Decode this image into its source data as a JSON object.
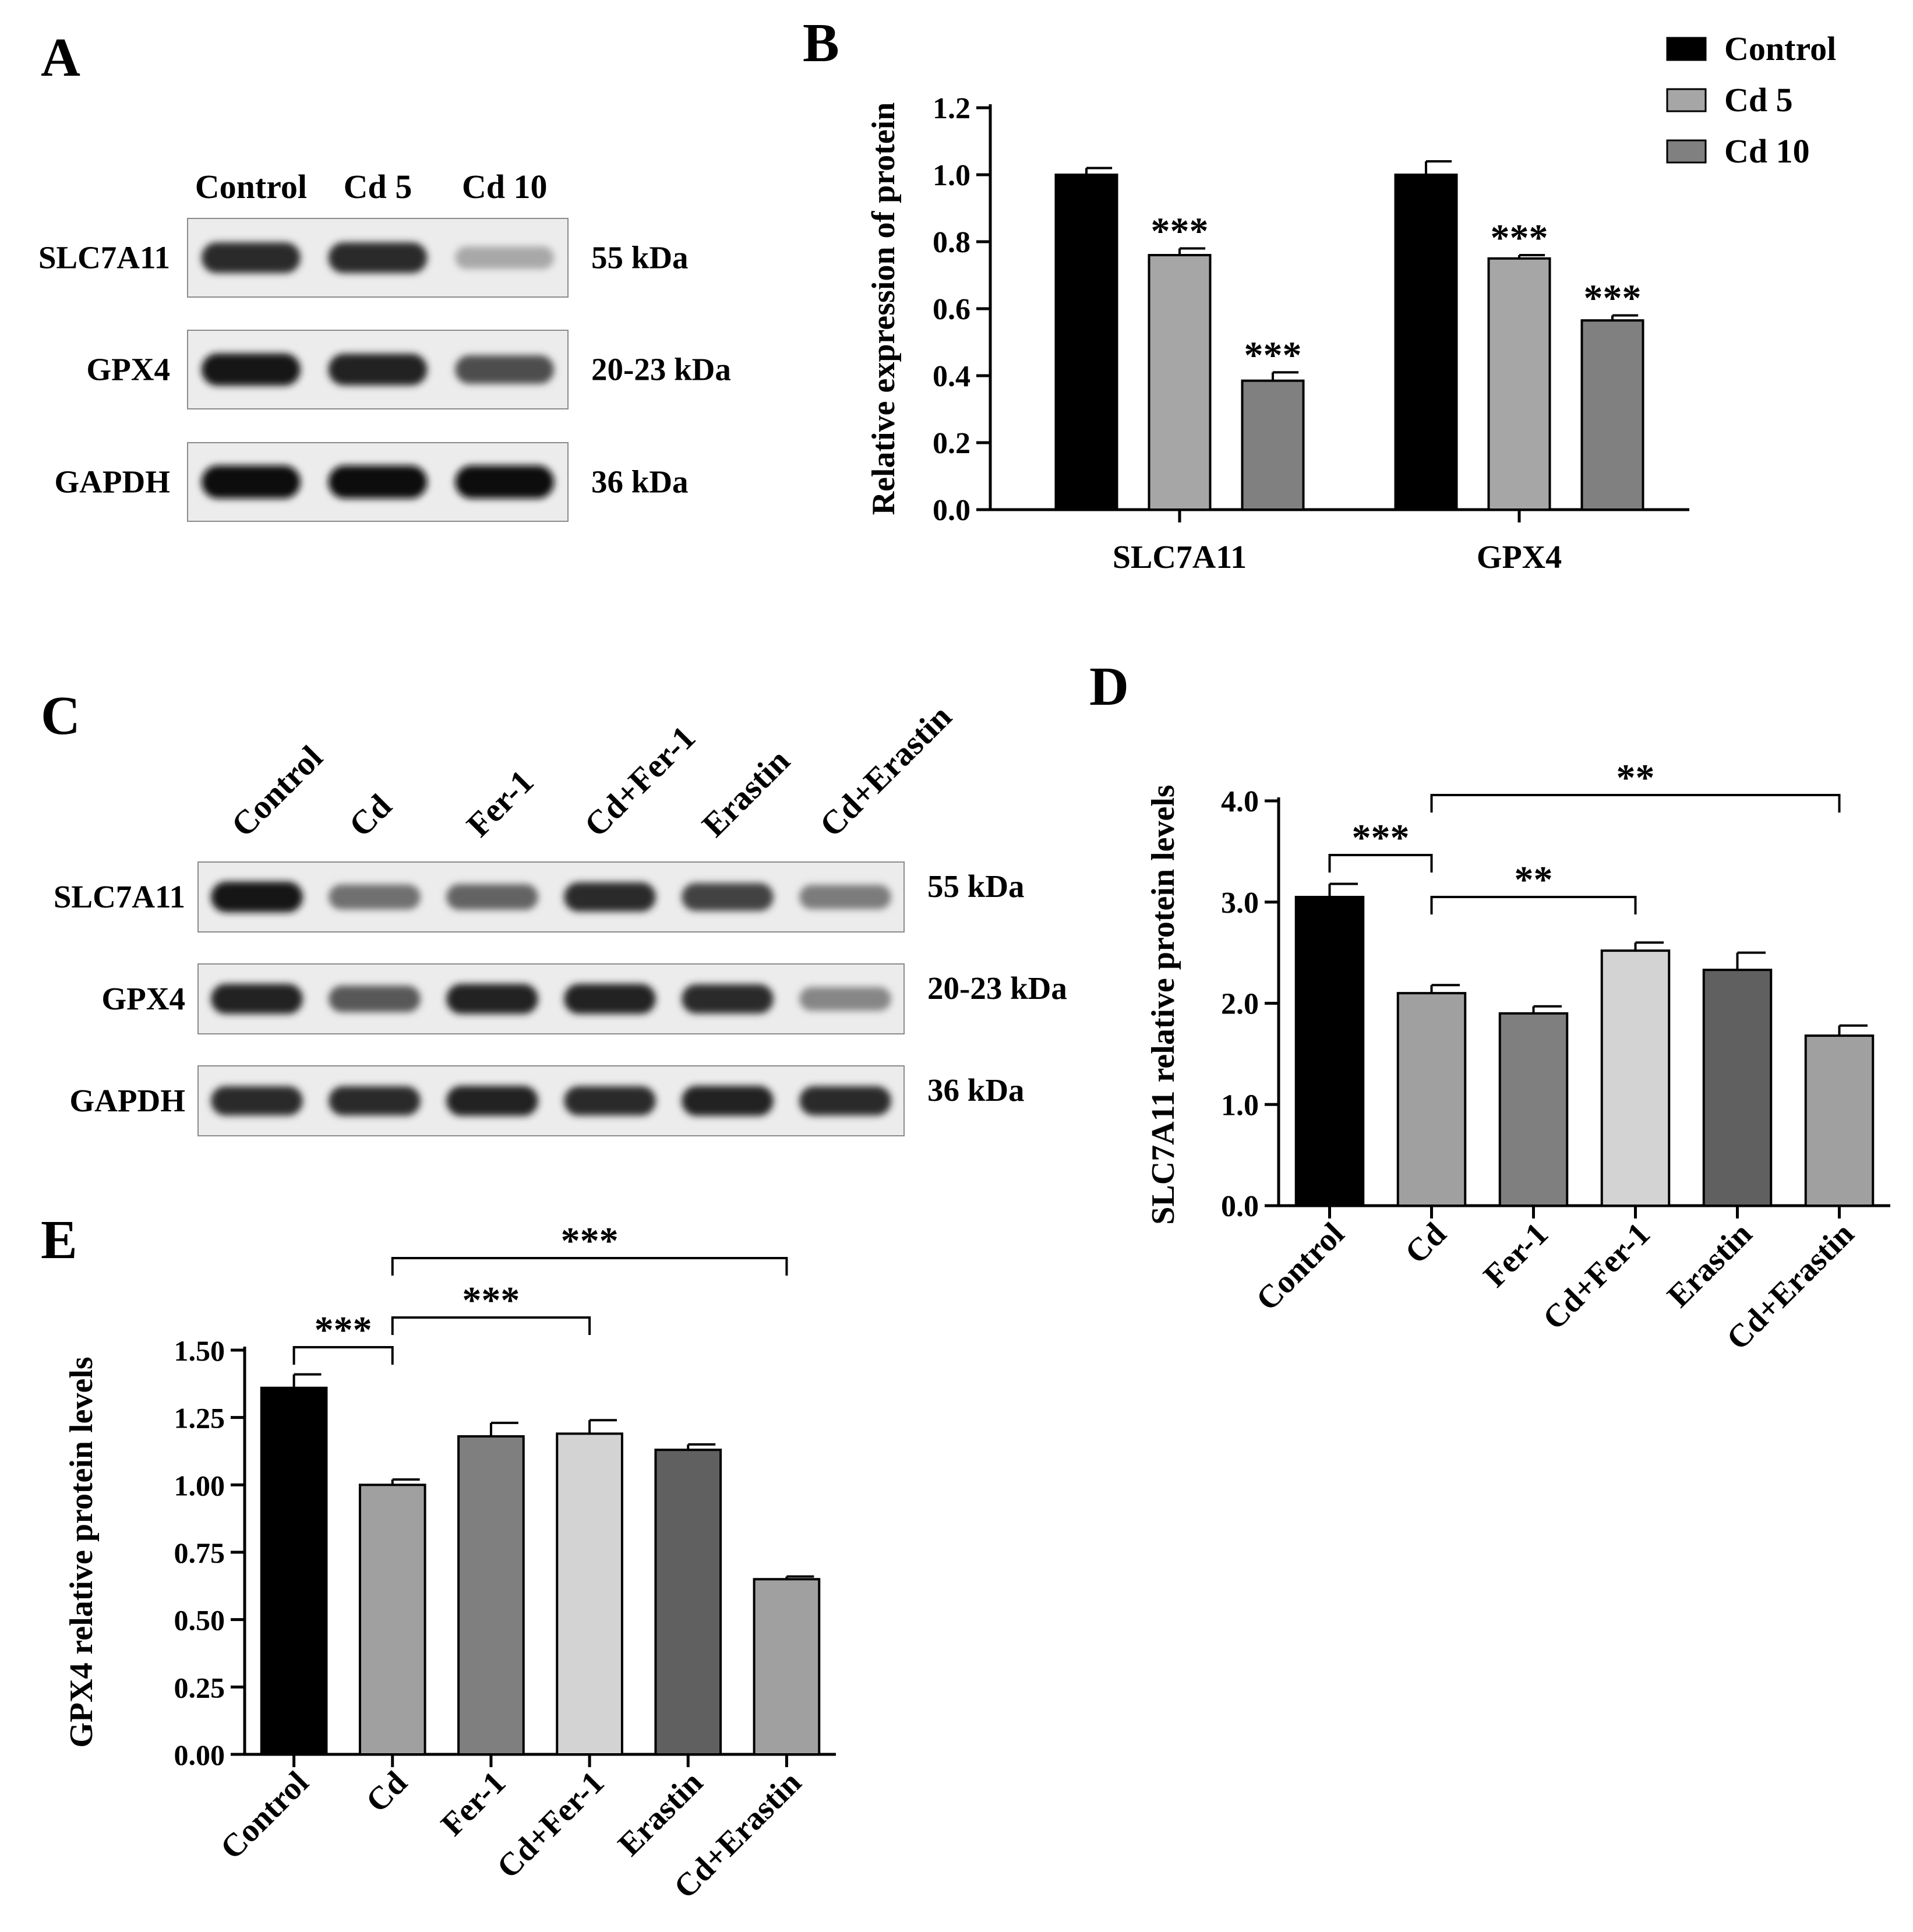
{
  "panels": {
    "A": {
      "letter": "A",
      "lanes": [
        "Control",
        "Cd 5",
        "Cd 10"
      ],
      "rows": [
        {
          "protein": "SLC7A11",
          "size": "55 kDa",
          "intensity": [
            0.85,
            0.85,
            0.3
          ]
        },
        {
          "protein": "GPX4",
          "size": "20-23 kDa",
          "intensity": [
            0.95,
            0.9,
            0.7
          ]
        },
        {
          "protein": "GAPDH",
          "size": "36 kDa",
          "intensity": [
            1.0,
            1.0,
            1.0
          ]
        }
      ]
    },
    "C": {
      "letter": "C",
      "lanes": [
        "Control",
        "Cd",
        "Fer-1",
        "Cd+Fer-1",
        "Erastin",
        "Cd+Erastin"
      ],
      "rows": [
        {
          "protein": "SLC7A11",
          "size": "55 kDa",
          "intensity": [
            0.95,
            0.55,
            0.6,
            0.85,
            0.75,
            0.5
          ]
        },
        {
          "protein": "GPX4",
          "size": "20-23 kDa",
          "intensity": [
            0.9,
            0.65,
            0.9,
            0.9,
            0.85,
            0.45
          ]
        },
        {
          "protein": "GAPDH",
          "size": "36 kDa",
          "intensity": [
            0.85,
            0.85,
            0.9,
            0.85,
            0.9,
            0.85
          ]
        }
      ]
    }
  },
  "chart_data": [
    {
      "panel": "B",
      "type": "bar",
      "ylabel": "Relative expression of  protein",
      "categories": [
        "SLC7A11",
        "GPX4"
      ],
      "yticks": [
        "0.0",
        "0.2",
        "0.4",
        "0.6",
        "0.8",
        "1.0",
        "1.2"
      ],
      "ylim": [
        0,
        1.2
      ],
      "legend_position": "top-right",
      "series": [
        {
          "name": "Control",
          "color": "#000000",
          "values": [
            1.0,
            1.0
          ],
          "errors": [
            0.02,
            0.04
          ],
          "sig": [
            "",
            ""
          ]
        },
        {
          "name": "Cd 5",
          "color": "#a6a6a6",
          "values": [
            0.76,
            0.75
          ],
          "errors": [
            0.02,
            0.01
          ],
          "sig": [
            "***",
            "***"
          ]
        },
        {
          "name": "Cd 10",
          "color": "#808080",
          "values": [
            0.385,
            0.565
          ],
          "errors": [
            0.025,
            0.015
          ],
          "sig": [
            "***",
            "***"
          ]
        }
      ]
    },
    {
      "panel": "D",
      "type": "bar",
      "ylabel": "SLC7A11 relative protein levels",
      "categories": [
        "Control",
        "Cd",
        "Fer-1",
        "Cd+Fer-1",
        "Erastin",
        "Cd+Erastin"
      ],
      "values": [
        3.05,
        2.1,
        1.9,
        2.52,
        2.33,
        1.68
      ],
      "errors": [
        0.13,
        0.08,
        0.07,
        0.08,
        0.17,
        0.1
      ],
      "colors": [
        "#000000",
        "#a0a0a0",
        "#7f7f7f",
        "#d3d3d3",
        "#606060",
        "#a0a0a0"
      ],
      "yticks": [
        "0.0",
        "1.0",
        "2.0",
        "3.0",
        "4.0"
      ],
      "ylim": [
        0,
        4.0
      ],
      "brackets": [
        {
          "from": 0,
          "to": 1,
          "label": "***"
        },
        {
          "from": 1,
          "to": 3,
          "label": "**"
        },
        {
          "from": 1,
          "to": 5,
          "label": "**"
        }
      ]
    },
    {
      "panel": "E",
      "type": "bar",
      "ylabel": "GPX4 relative protein levels",
      "categories": [
        "Control",
        "Cd",
        "Fer-1",
        "Cd+Fer-1",
        "Erastin",
        "Cd+Erastin"
      ],
      "values": [
        1.36,
        1.0,
        1.18,
        1.19,
        1.13,
        0.65
      ],
      "errors": [
        0.05,
        0.02,
        0.05,
        0.05,
        0.02,
        0.01
      ],
      "colors": [
        "#000000",
        "#a0a0a0",
        "#7f7f7f",
        "#d3d3d3",
        "#606060",
        "#a0a0a0"
      ],
      "yticks": [
        "0.00",
        "0.25",
        "0.50",
        "0.75",
        "1.00",
        "1.25",
        "1.50"
      ],
      "ylim": [
        0,
        1.5
      ],
      "brackets": [
        {
          "from": 0,
          "to": 1,
          "label": "***"
        },
        {
          "from": 1,
          "to": 3,
          "label": "***"
        },
        {
          "from": 1,
          "to": 5,
          "label": "***"
        }
      ]
    }
  ]
}
